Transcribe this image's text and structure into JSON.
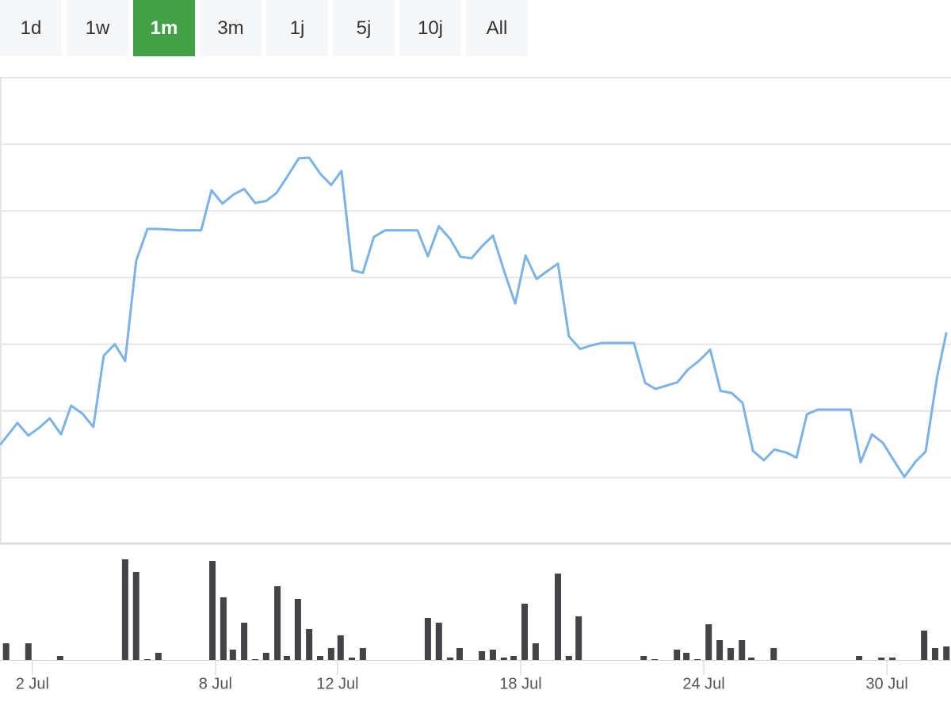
{
  "range_buttons": [
    "1d",
    "1w",
    "1m",
    "3m",
    "1j",
    "5j",
    "10j",
    "All"
  ],
  "active_range": 2,
  "chart_data": [
    {
      "type": "line",
      "color": "#7cb3e6",
      "grid": true,
      "xlim": [
        0.94,
        32.1
      ],
      "ylim": [
        0,
        7
      ],
      "yticks": [
        1,
        2,
        3,
        4,
        5,
        6,
        7
      ],
      "x": [
        0.94,
        1.51,
        1.87,
        2.23,
        2.57,
        2.94,
        3.27,
        3.64,
        4.0,
        4.34,
        4.7,
        5.04,
        5.4,
        5.77,
        6.1,
        6.47,
        6.83,
        7.17,
        7.53,
        7.87,
        8.23,
        8.6,
        8.94,
        9.3,
        9.66,
        10.0,
        10.36,
        10.73,
        11.07,
        11.43,
        11.79,
        12.13,
        12.49,
        12.83,
        13.19,
        13.56,
        13.9,
        14.26,
        14.62,
        14.96,
        15.32,
        15.69,
        16.03,
        16.39,
        16.75,
        17.09,
        17.45,
        17.82,
        18.16,
        18.52,
        18.88,
        19.22,
        19.58,
        19.95,
        20.29,
        20.65,
        21.01,
        21.35,
        21.71,
        22.08,
        22.42,
        22.78,
        23.14,
        23.48,
        23.84,
        24.21,
        24.55,
        24.91,
        25.27,
        25.61,
        25.97,
        26.31,
        26.68,
        27.04,
        27.38,
        27.74,
        28.1,
        28.44,
        28.81,
        29.14,
        29.51,
        29.87,
        30.21,
        30.57,
        30.94,
        31.27,
        31.64,
        31.95
      ],
      "values": [
        1.49,
        1.82,
        1.63,
        1.75,
        1.89,
        1.65,
        2.08,
        1.96,
        1.76,
        2.83,
        3.0,
        2.75,
        4.25,
        4.73,
        4.73,
        4.72,
        4.71,
        4.71,
        4.71,
        5.31,
        5.11,
        5.25,
        5.33,
        5.12,
        5.15,
        5.27,
        5.52,
        5.79,
        5.8,
        5.56,
        5.39,
        5.6,
        4.11,
        4.07,
        4.61,
        4.71,
        4.71,
        4.71,
        4.71,
        4.32,
        4.77,
        4.58,
        4.31,
        4.29,
        4.48,
        4.63,
        4.11,
        3.61,
        4.33,
        3.98,
        4.1,
        4.21,
        3.12,
        2.93,
        2.98,
        3.02,
        3.02,
        3.02,
        3.02,
        2.42,
        2.33,
        2.38,
        2.43,
        2.62,
        2.75,
        2.92,
        2.3,
        2.27,
        2.12,
        1.4,
        1.26,
        1.42,
        1.38,
        1.3,
        1.95,
        2.02,
        2.02,
        2.02,
        2.02,
        1.23,
        1.65,
        1.52,
        1.27,
        1.01,
        1.24,
        1.39,
        2.5,
        3.18
      ]
    },
    {
      "type": "bar",
      "color": "#434348",
      "xlim": [
        0.94,
        32.1
      ],
      "ylim": [
        0,
        13
      ],
      "xticks": [
        {
          "value": 2,
          "label": "2 Jul"
        },
        {
          "value": 8,
          "label": "8 Jul"
        },
        {
          "value": 12,
          "label": "12 Jul"
        },
        {
          "value": 18,
          "label": "18 Jul"
        },
        {
          "value": 24,
          "label": "24 Jul"
        },
        {
          "value": 30,
          "label": "30 Jul"
        }
      ],
      "x": [
        1.14,
        1.87,
        2.91,
        5.04,
        5.4,
        5.77,
        6.13,
        7.9,
        8.26,
        8.57,
        8.94,
        9.3,
        9.66,
        10.03,
        10.34,
        10.7,
        11.07,
        11.43,
        11.79,
        12.1,
        12.47,
        12.83,
        14.96,
        15.32,
        15.69,
        16.0,
        16.73,
        17.09,
        17.45,
        17.77,
        18.13,
        18.49,
        19.22,
        19.58,
        19.9,
        22.03,
        22.39,
        23.12,
        23.43,
        23.79,
        24.16,
        24.52,
        24.88,
        25.25,
        25.56,
        26.29,
        29.09,
        29.82,
        30.18,
        31.22,
        31.58,
        31.95
      ],
      "values": [
        2.1,
        2.1,
        0.5,
        12.7,
        11.1,
        0.1,
        0.9,
        12.5,
        7.9,
        1.3,
        4.7,
        0.1,
        0.9,
        9.3,
        0.5,
        7.7,
        3.9,
        0.5,
        1.5,
        3.1,
        0.3,
        1.5,
        5.3,
        4.7,
        0.3,
        1.5,
        1.1,
        1.3,
        0.3,
        0.5,
        7.1,
        2.1,
        10.9,
        0.5,
        5.5,
        0.5,
        0.1,
        1.3,
        0.9,
        0.1,
        4.5,
        2.5,
        1.5,
        2.5,
        0.3,
        1.5,
        0.5,
        0.3,
        0.3,
        3.7,
        1.5,
        1.7
      ]
    }
  ]
}
